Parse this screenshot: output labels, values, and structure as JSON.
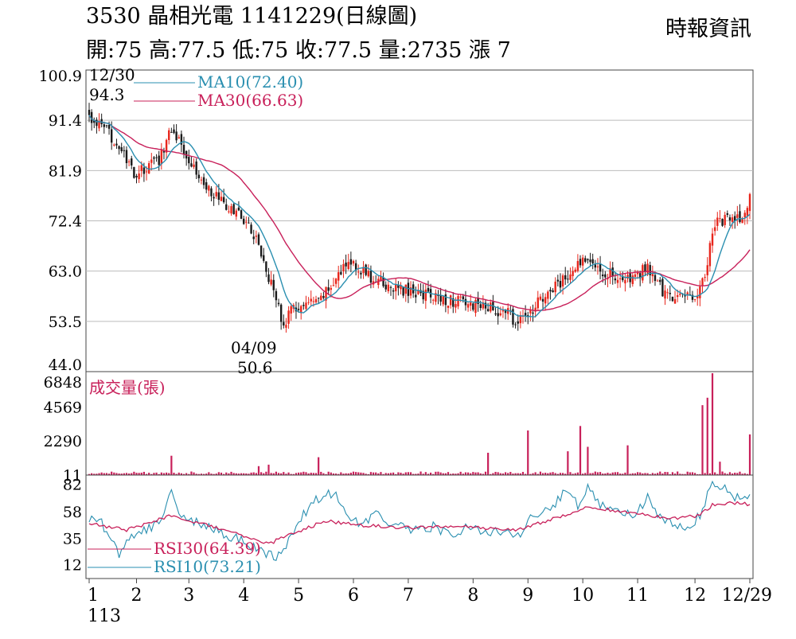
{
  "header": {
    "title": "3530  晶相光電 1141229(日線圖)",
    "quote": "開:75 高:77.5 低:75 收:77.5 量:2735 漲 7",
    "source": "時報資訊"
  },
  "chart_data": [
    {
      "type": "candlestick",
      "panel": "price",
      "ylim": [
        44.0,
        100.9
      ],
      "yticks": [
        "100.9",
        "91.4",
        "81.9",
        "72.4",
        "63.0",
        "53.5",
        "44.0"
      ],
      "grid": true,
      "colors": {
        "up": "#e8261c",
        "down": "#1a1a1a",
        "ma10": "#2a8fb0",
        "ma30": "#c8205a"
      },
      "legend": [
        {
          "label": "MA10(72.40)",
          "color": "#2a8fb0"
        },
        {
          "label": "MA30(66.63)",
          "color": "#c8205a"
        }
      ],
      "annotations": [
        {
          "date": "12/30",
          "value": "94.3"
        },
        {
          "date": "04/09",
          "value": "50.6"
        }
      ],
      "close_anchors": [
        [
          0,
          92
        ],
        [
          10,
          88
        ],
        [
          18,
          81
        ],
        [
          28,
          84
        ],
        [
          33,
          90
        ],
        [
          37,
          87
        ],
        [
          45,
          80
        ],
        [
          55,
          75
        ],
        [
          62,
          73
        ],
        [
          68,
          68
        ],
        [
          72,
          62
        ],
        [
          78,
          53
        ],
        [
          82,
          56
        ],
        [
          92,
          57
        ],
        [
          98,
          61
        ],
        [
          105,
          65
        ],
        [
          112,
          62
        ],
        [
          120,
          60
        ],
        [
          130,
          59
        ],
        [
          140,
          58
        ],
        [
          150,
          57
        ],
        [
          160,
          56
        ],
        [
          168,
          55
        ],
        [
          172,
          53
        ],
        [
          178,
          56
        ],
        [
          185,
          59
        ],
        [
          192,
          62
        ],
        [
          200,
          66
        ],
        [
          206,
          63
        ],
        [
          212,
          62
        ],
        [
          218,
          61
        ],
        [
          224,
          64
        ],
        [
          230,
          59
        ],
        [
          236,
          58
        ],
        [
          243,
          58
        ],
        [
          247,
          63
        ],
        [
          251,
          72
        ],
        [
          258,
          73
        ],
        [
          262,
          72
        ],
        [
          265,
          77.5
        ]
      ],
      "ma10_last": 72.4,
      "ma30_last": 66.63
    },
    {
      "type": "bar",
      "panel": "volume",
      "title": "成交量(張)",
      "ylim": [
        0,
        6848
      ],
      "yticks": [
        "6848",
        "4569",
        "2290",
        "11"
      ],
      "color": "#c8205a",
      "spikes": [
        [
          33,
          1300
        ],
        [
          68,
          600
        ],
        [
          72,
          700
        ],
        [
          92,
          1200
        ],
        [
          160,
          1500
        ],
        [
          176,
          3000
        ],
        [
          192,
          1600
        ],
        [
          197,
          3300
        ],
        [
          200,
          1900
        ],
        [
          216,
          2000
        ],
        [
          246,
          4700
        ],
        [
          248,
          5200
        ],
        [
          250,
          6848
        ],
        [
          253,
          900
        ],
        [
          265,
          2735
        ]
      ],
      "base": 150
    },
    {
      "type": "line",
      "panel": "rsi",
      "ylim": [
        0,
        90
      ],
      "yticks": [
        "82",
        "58",
        "35",
        "12"
      ],
      "legend": [
        {
          "label": "RSI30(64.39)",
          "color": "#c8205a"
        },
        {
          "label": "RSI10(73.21)",
          "color": "#2a8fb0"
        }
      ],
      "rsi10_anchors": [
        [
          0,
          52
        ],
        [
          5,
          48
        ],
        [
          10,
          30
        ],
        [
          12,
          18
        ],
        [
          16,
          35
        ],
        [
          22,
          42
        ],
        [
          28,
          48
        ],
        [
          33,
          75
        ],
        [
          36,
          58
        ],
        [
          42,
          50
        ],
        [
          48,
          45
        ],
        [
          55,
          38
        ],
        [
          62,
          32
        ],
        [
          68,
          25
        ],
        [
          72,
          22
        ],
        [
          75,
          20
        ],
        [
          80,
          32
        ],
        [
          86,
          55
        ],
        [
          92,
          70
        ],
        [
          98,
          75
        ],
        [
          102,
          60
        ],
        [
          108,
          48
        ],
        [
          115,
          55
        ],
        [
          120,
          48
        ],
        [
          130,
          42
        ],
        [
          138,
          45
        ],
        [
          146,
          38
        ],
        [
          152,
          45
        ],
        [
          158,
          42
        ],
        [
          165,
          40
        ],
        [
          172,
          36
        ],
        [
          176,
          52
        ],
        [
          180,
          55
        ],
        [
          186,
          62
        ],
        [
          192,
          78
        ],
        [
          196,
          62
        ],
        [
          200,
          82
        ],
        [
          206,
          62
        ],
        [
          212,
          60
        ],
        [
          218,
          55
        ],
        [
          224,
          70
        ],
        [
          230,
          50
        ],
        [
          236,
          45
        ],
        [
          242,
          45
        ],
        [
          246,
          60
        ],
        [
          249,
          82
        ],
        [
          254,
          80
        ],
        [
          258,
          72
        ],
        [
          262,
          70
        ],
        [
          265,
          73.21
        ]
      ],
      "rsi30_anchors": [
        [
          0,
          48
        ],
        [
          15,
          42
        ],
        [
          33,
          55
        ],
        [
          55,
          42
        ],
        [
          72,
          30
        ],
        [
          80,
          38
        ],
        [
          95,
          50
        ],
        [
          110,
          46
        ],
        [
          130,
          44
        ],
        [
          150,
          45
        ],
        [
          172,
          42
        ],
        [
          190,
          55
        ],
        [
          200,
          62
        ],
        [
          215,
          58
        ],
        [
          235,
          52
        ],
        [
          245,
          55
        ],
        [
          250,
          64
        ],
        [
          258,
          66
        ],
        [
          265,
          64.39
        ]
      ],
      "last_rsi10": 73.21,
      "last_rsi30": 64.39
    }
  ],
  "x_axis": {
    "year_label": "113",
    "ticks": [
      {
        "label": "1",
        "i": 0
      },
      {
        "label": "2",
        "i": 19
      },
      {
        "label": "3",
        "i": 40
      },
      {
        "label": "4",
        "i": 62
      },
      {
        "label": "5",
        "i": 84
      },
      {
        "label": "6",
        "i": 106
      },
      {
        "label": "7",
        "i": 128
      },
      {
        "label": "8",
        "i": 154
      },
      {
        "label": "9",
        "i": 176
      },
      {
        "label": "10",
        "i": 198
      },
      {
        "label": "11",
        "i": 220
      },
      {
        "label": "12",
        "i": 243
      },
      {
        "label": "12/29",
        "i": 265
      }
    ]
  }
}
